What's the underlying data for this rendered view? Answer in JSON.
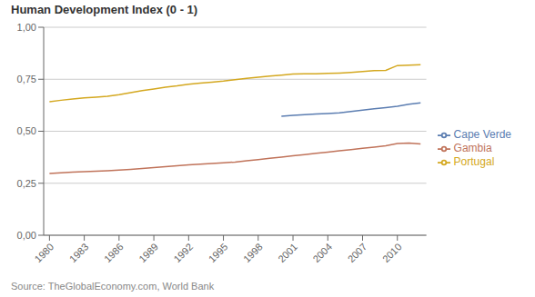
{
  "chart_data": {
    "type": "line",
    "title": "Human Development Index (0 - 1)",
    "annotations": [
      "Source: TheGlobalEconomy.com, World Bank"
    ],
    "x": [
      1980,
      1981,
      1982,
      1983,
      1984,
      1985,
      1986,
      1987,
      1988,
      1989,
      1990,
      1991,
      1992,
      1993,
      1994,
      1995,
      1996,
      1997,
      1998,
      1999,
      2000,
      2001,
      2002,
      2003,
      2004,
      2005,
      2006,
      2007,
      2008,
      2009,
      2010,
      2011,
      2012
    ],
    "series": [
      {
        "name": "Cape Verde",
        "color": "#5B7DB1",
        "values": [
          null,
          null,
          null,
          null,
          null,
          null,
          null,
          null,
          null,
          null,
          null,
          null,
          null,
          null,
          null,
          null,
          null,
          null,
          null,
          null,
          0.572,
          0.576,
          0.58,
          0.583,
          0.585,
          0.588,
          0.595,
          0.602,
          0.608,
          0.614,
          0.62,
          0.63,
          0.636
        ]
      },
      {
        "name": "Gambia",
        "color": "#C0735A",
        "values": [
          0.297,
          0.3,
          0.303,
          0.306,
          0.308,
          0.31,
          0.313,
          0.317,
          0.321,
          0.325,
          0.33,
          0.334,
          0.338,
          0.342,
          0.345,
          0.348,
          0.352,
          0.358,
          0.364,
          0.37,
          0.376,
          0.382,
          0.388,
          0.394,
          0.4,
          0.406,
          0.412,
          0.418,
          0.424,
          0.43,
          0.441,
          0.443,
          0.439
        ]
      },
      {
        "name": "Portugal",
        "color": "#D4A820",
        "values": [
          0.642,
          0.649,
          0.655,
          0.66,
          0.664,
          0.668,
          0.676,
          0.686,
          0.695,
          0.703,
          0.712,
          0.718,
          0.726,
          0.731,
          0.736,
          0.741,
          0.748,
          0.754,
          0.76,
          0.765,
          0.77,
          0.775,
          0.776,
          0.776,
          0.778,
          0.78,
          0.783,
          0.787,
          0.791,
          0.793,
          0.816,
          0.818,
          0.82
        ]
      }
    ],
    "xlim": [
      1979.5,
      2012.5
    ],
    "xticks": [
      1980,
      1983,
      1986,
      1989,
      1992,
      1995,
      1998,
      2001,
      2004,
      2007,
      2010
    ],
    "ylim": [
      0.0,
      1.0
    ],
    "yticks": [
      {
        "value": 0.0,
        "label": "0,00"
      },
      {
        "value": 0.25,
        "label": "0,25"
      },
      {
        "value": 0.5,
        "label": "0,50"
      },
      {
        "value": 0.75,
        "label": "0,75"
      },
      {
        "value": 1.0,
        "label": "1,00"
      }
    ],
    "grid": true,
    "legend": "right"
  }
}
